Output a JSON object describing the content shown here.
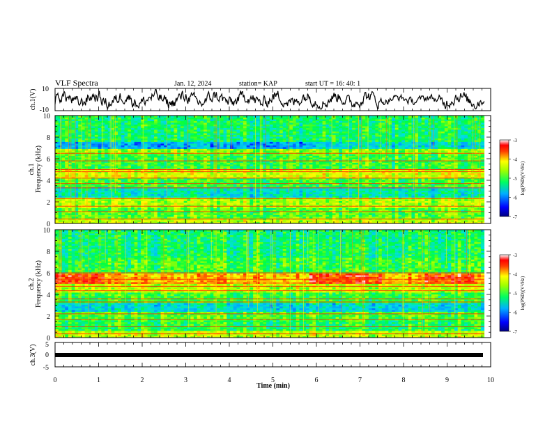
{
  "header": {
    "title": "VLF Spectra",
    "date": "Jan. 12, 2024",
    "station": "station= KAP",
    "start": "start  UT =   16: 40: 1"
  },
  "chart_data": [
    {
      "type": "line",
      "panel": "ch1-waveform",
      "ylabel": "ch.1(V)",
      "ylim": [
        -10,
        10
      ],
      "yticks": [
        "10",
        "-10"
      ],
      "xlim": [
        0,
        10
      ],
      "series": [
        {
          "values_note": "noisy waveform roughly between -8 and 9 V over 0 to 9.85 min"
        }
      ]
    },
    {
      "type": "heatmap",
      "panel": "ch1-spectrogram",
      "ylabel": "ch.1\nFrequency  (kHz)",
      "ylim": [
        0,
        10
      ],
      "yticks": [
        "0",
        "2",
        "4",
        "6",
        "8",
        "10"
      ],
      "xlim": [
        0,
        10
      ],
      "data_x_end": 9.85,
      "colorbar": {
        "label": "log(PSD)(V²/Hz)",
        "range": [
          -7,
          -3
        ],
        "ticks": [
          "-3",
          "-4",
          "-5",
          "-6",
          "-7"
        ]
      },
      "bands": [
        {
          "from": 0,
          "to": 0.5,
          "level": -4.6
        },
        {
          "from": 0.5,
          "to": 1.4,
          "level": -5.0
        },
        {
          "from": 1.4,
          "to": 2.4,
          "level": -4.7
        },
        {
          "from": 2.4,
          "to": 3.4,
          "level": -5.6
        },
        {
          "from": 3.4,
          "to": 4.2,
          "level": -5.1
        },
        {
          "from": 4.2,
          "to": 5.0,
          "level": -4.5
        },
        {
          "from": 5.0,
          "to": 6.5,
          "level": -5.1
        },
        {
          "from": 6.5,
          "to": 7.0,
          "level": -4.8
        },
        {
          "from": 7.0,
          "to": 7.6,
          "level": -6.0
        },
        {
          "from": 7.6,
          "to": 10,
          "level": -5.3
        }
      ]
    },
    {
      "type": "heatmap",
      "panel": "ch2-spectrogram",
      "ylabel": "ch.2\nFrequency  (kHz)",
      "ylim": [
        0,
        10
      ],
      "yticks": [
        "0",
        "2",
        "4",
        "6",
        "8",
        "10"
      ],
      "xlim": [
        0,
        10
      ],
      "data_x_end": 9.85,
      "colorbar": {
        "label": "log(PSD)(V²/Hz)",
        "range": [
          -7,
          -3
        ],
        "ticks": [
          "-3",
          "-4",
          "-5",
          "-6",
          "-7"
        ]
      },
      "bands": [
        {
          "from": 0,
          "to": 0.6,
          "level": -4.6
        },
        {
          "from": 0.6,
          "to": 1.6,
          "level": -5.2
        },
        {
          "from": 1.6,
          "to": 2.4,
          "level": -5.0
        },
        {
          "from": 2.4,
          "to": 3.2,
          "level": -5.7
        },
        {
          "from": 3.2,
          "to": 4.2,
          "level": -5.1
        },
        {
          "from": 4.2,
          "to": 5.0,
          "level": -4.6
        },
        {
          "from": 5.0,
          "to": 6.0,
          "level": -4.1
        },
        {
          "from": 6.0,
          "to": 7.5,
          "level": -5.1
        },
        {
          "from": 7.5,
          "to": 10,
          "level": -5.3
        }
      ]
    },
    {
      "type": "line",
      "panel": "ch3",
      "ylabel": "ch.3(V)",
      "ylim": [
        -5,
        5
      ],
      "yticks": [
        "5",
        "0",
        "-5"
      ],
      "xlim": [
        0,
        10
      ],
      "xlabel": "Time  (min)",
      "xticks": [
        "0",
        "1",
        "2",
        "3",
        "4",
        "5",
        "6",
        "7",
        "8",
        "9",
        "10"
      ],
      "series": [
        {
          "values": [
            0,
            0
          ],
          "x": [
            0,
            9.85
          ],
          "note": "flat thick line near 0 V"
        }
      ]
    }
  ],
  "colors": {
    "colormap": [
      "#000080",
      "#0000ff",
      "#00a0ff",
      "#00e0e0",
      "#00ff40",
      "#a0ff00",
      "#ffff00",
      "#ff8000",
      "#ff0000",
      "#ffffff"
    ],
    "line": "#000000"
  }
}
